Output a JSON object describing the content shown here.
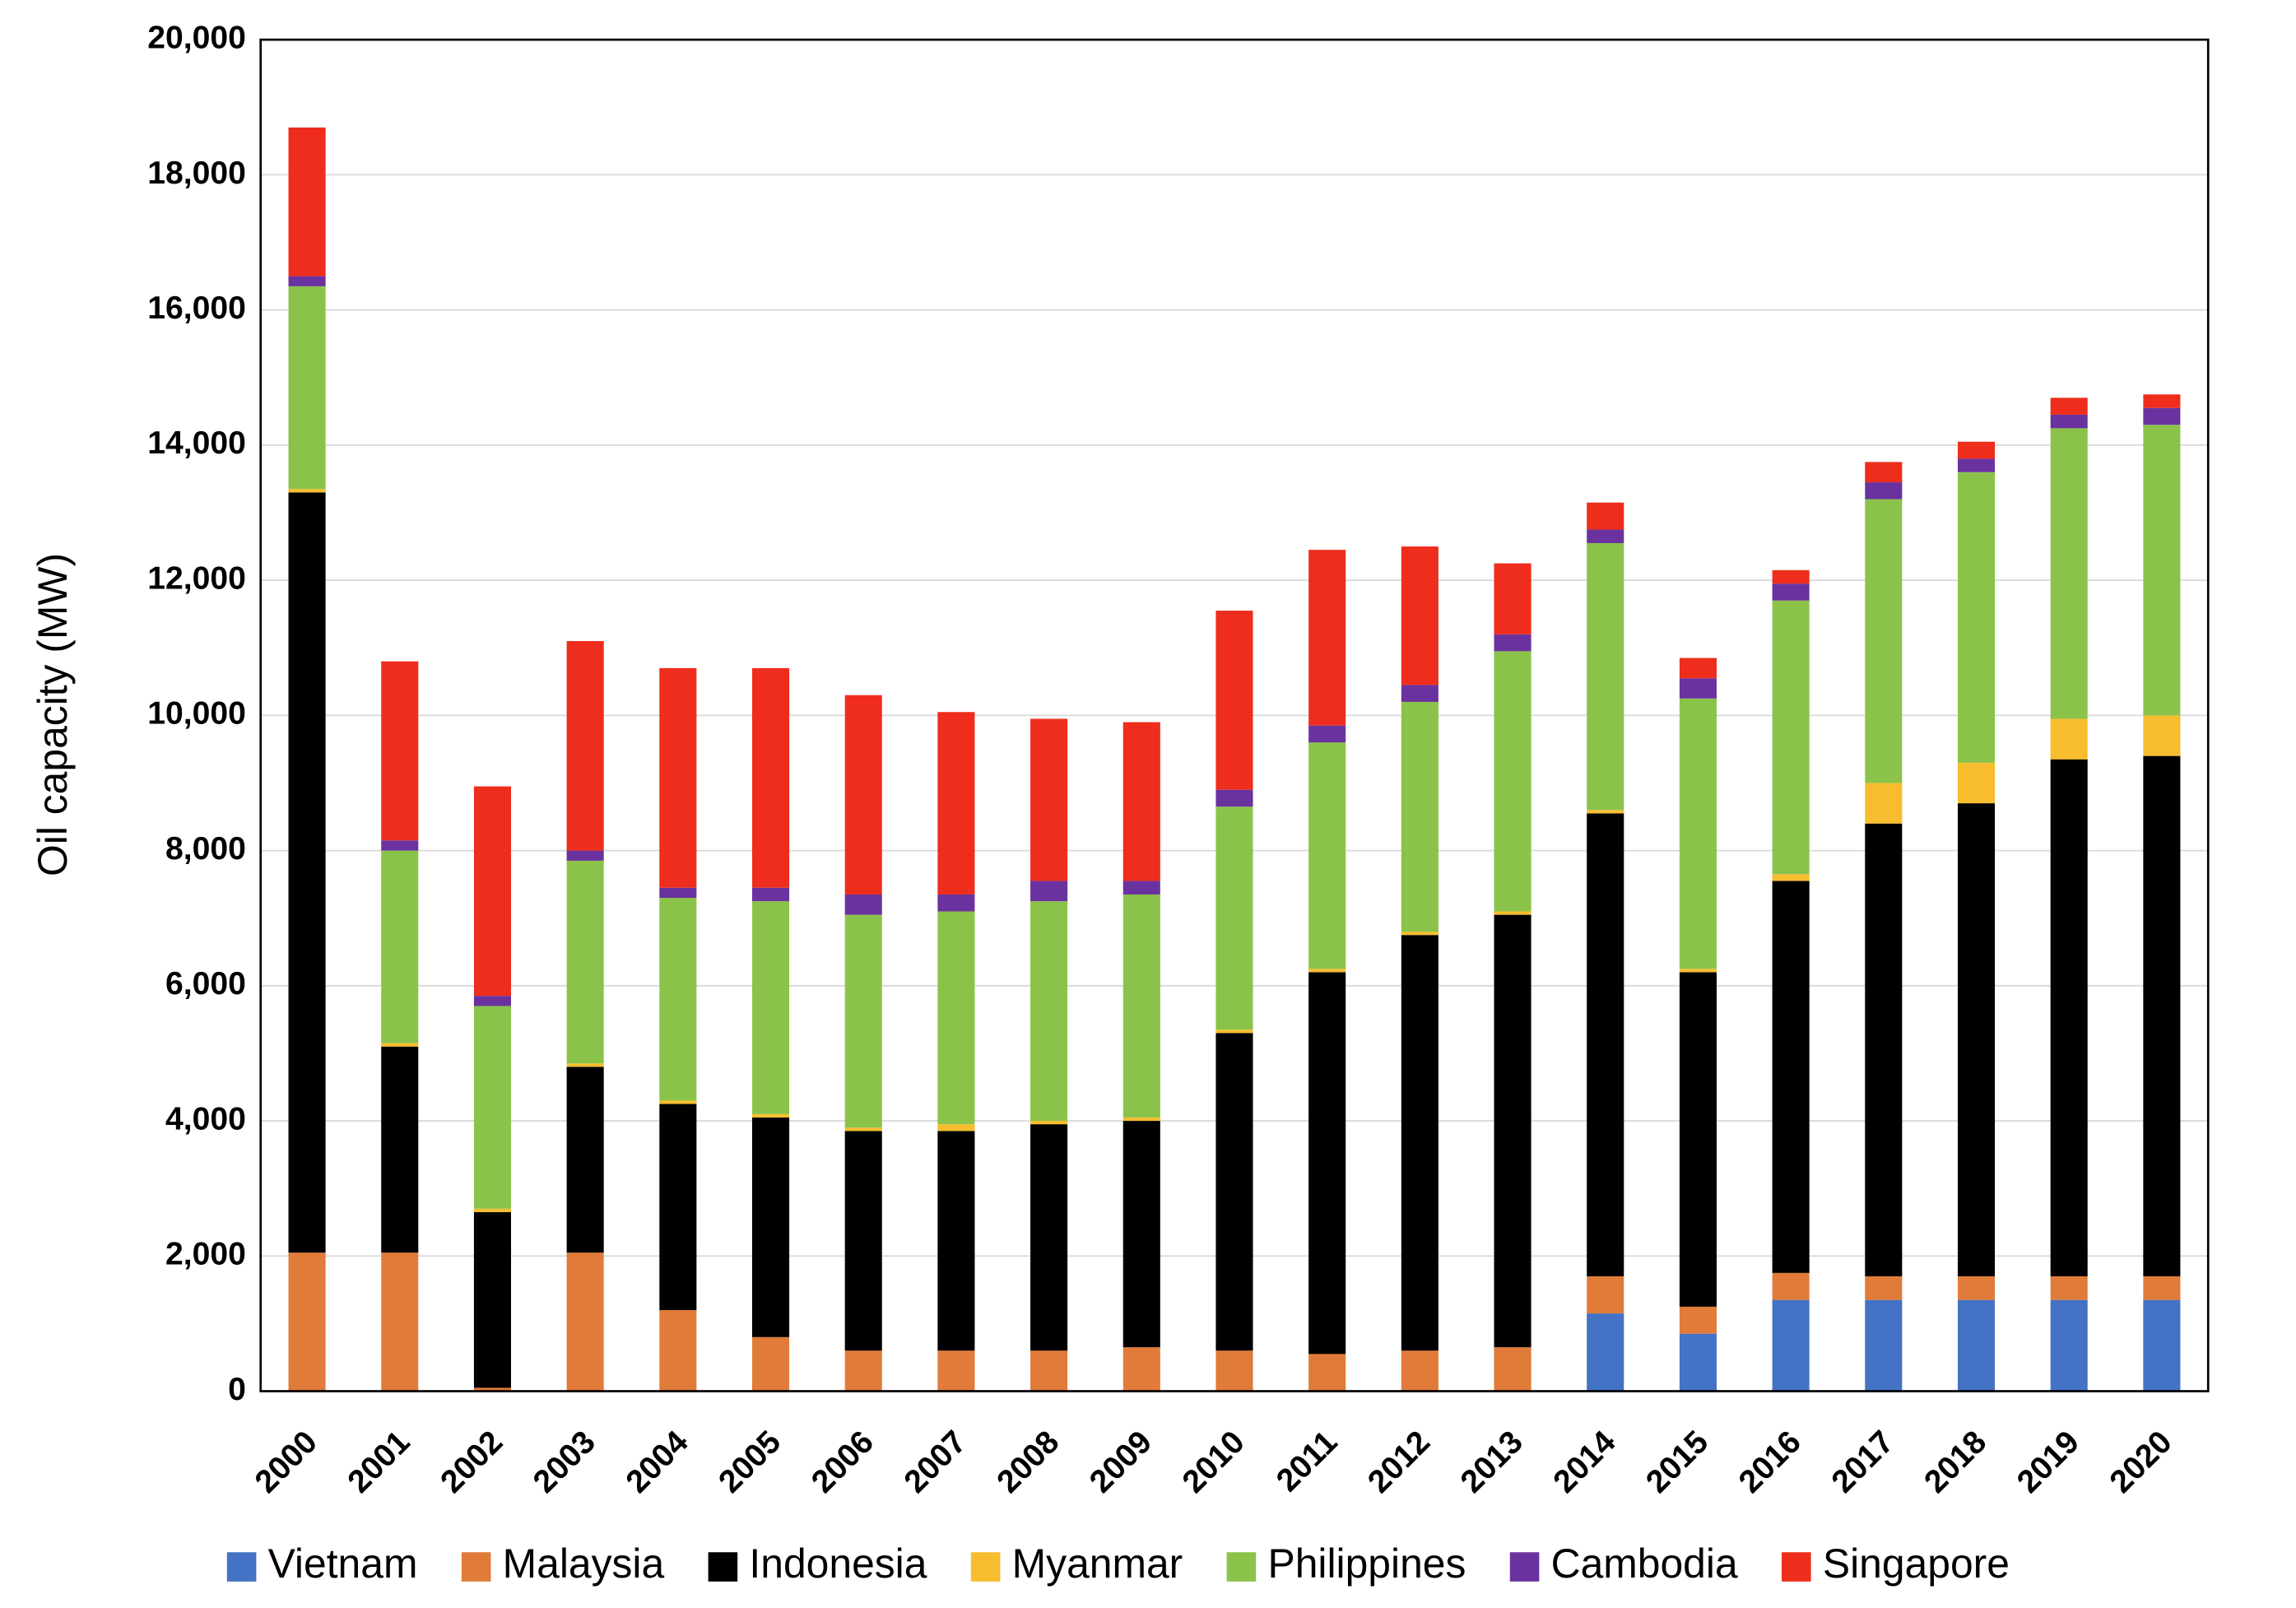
{
  "chart_data": {
    "type": "stacked-bar",
    "y_label": "Oil capacity (MW)",
    "categories": [
      "2000",
      "2001",
      "2002",
      "2003",
      "2004",
      "2005",
      "2006",
      "2007",
      "2008",
      "2009",
      "2010",
      "2011",
      "2012",
      "2013",
      "2014",
      "2015",
      "2016",
      "2017",
      "2018",
      "2019",
      "2020"
    ],
    "series": [
      {
        "name": "Vietnam",
        "color": "#4472c4",
        "values": [
          0,
          0,
          0,
          0,
          0,
          0,
          0,
          0,
          0,
          0,
          0,
          0,
          0,
          0,
          1150,
          850,
          1350,
          1350,
          1350,
          1350,
          1350
        ]
      },
      {
        "name": "Malaysia",
        "color": "#e07b39",
        "values": [
          2050,
          2050,
          50,
          2050,
          1200,
          800,
          600,
          600,
          600,
          650,
          600,
          550,
          600,
          650,
          550,
          400,
          400,
          350,
          350,
          350,
          350
        ]
      },
      {
        "name": "Indonesia",
        "color": "#000000",
        "values": [
          11250,
          3050,
          2600,
          2750,
          3050,
          3250,
          3250,
          3250,
          3350,
          3350,
          4700,
          5650,
          6150,
          6400,
          6850,
          4950,
          5800,
          6700,
          7000,
          7650,
          7700
        ]
      },
      {
        "name": "Myanmar",
        "color": "#f7bd2f",
        "values": [
          50,
          50,
          50,
          50,
          50,
          50,
          50,
          100,
          50,
          50,
          50,
          50,
          50,
          50,
          50,
          50,
          100,
          600,
          600,
          600,
          600
        ]
      },
      {
        "name": "Philippines",
        "color": "#8bc34a",
        "values": [
          3000,
          2850,
          3000,
          3000,
          3000,
          3150,
          3150,
          3150,
          3250,
          3300,
          3300,
          3350,
          3400,
          3850,
          3950,
          4000,
          4050,
          4200,
          4300,
          4300,
          4300
        ]
      },
      {
        "name": "Cambodia",
        "color": "#6a329f",
        "values": [
          150,
          150,
          150,
          150,
          150,
          200,
          300,
          250,
          300,
          200,
          250,
          250,
          250,
          250,
          200,
          300,
          250,
          250,
          200,
          200,
          250
        ]
      },
      {
        "name": "Singapore",
        "color": "#ee2d1c",
        "values": [
          2200,
          2650,
          3100,
          3100,
          3250,
          3250,
          2950,
          2700,
          2400,
          2350,
          2650,
          2600,
          2050,
          1050,
          400,
          300,
          200,
          300,
          250,
          250,
          200
        ]
      }
    ],
    "ylim": [
      0,
      20000
    ],
    "yticks": [
      0,
      {
        "value": 2000,
        "label": "2,000"
      },
      {
        "value": 4000,
        "label": "4,000"
      },
      {
        "value": 6000,
        "label": "6,000"
      },
      {
        "value": 8000,
        "label": "8,000"
      },
      {
        "value": 10000,
        "label": "10,000"
      },
      {
        "value": 12000,
        "label": "12,000"
      },
      {
        "value": 14000,
        "label": "14,000"
      },
      {
        "value": 16000,
        "label": "16,000"
      },
      {
        "value": 18000,
        "label": "18,000"
      },
      {
        "value": 20000,
        "label": "20,000"
      }
    ],
    "grid": true,
    "legend": "bottom"
  }
}
